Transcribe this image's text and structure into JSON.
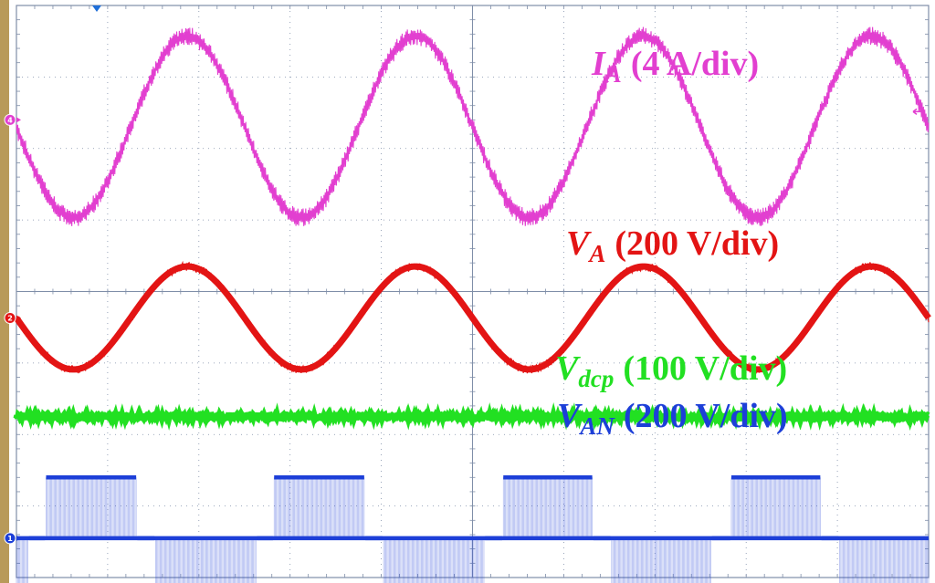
{
  "chart_data": {
    "type": "line",
    "title": "",
    "xlabel": "",
    "ylabel": "",
    "grid": true,
    "grid_divisions": {
      "x": 10,
      "y": 8
    },
    "axis_units": "divisions",
    "xlim": [
      0,
      10
    ],
    "ylim": [
      -4,
      4
    ],
    "series": [
      {
        "name_main": "I",
        "name_sub": "A",
        "scale": "(4 A/div)",
        "color": "#e23fd0",
        "channel_marker": "4",
        "waveform": "sine-with-ripple",
        "offset_div": 2.3,
        "amplitude_div": 1.27,
        "cycles_in_view": 4,
        "phase_deg": -180
      },
      {
        "name_main": "V",
        "name_sub": "A",
        "scale": "(200 V/div)",
        "color": "#e31414",
        "channel_marker": "2",
        "waveform": "sine",
        "offset_div": -0.37,
        "amplitude_div": 0.72,
        "cycles_in_view": 4,
        "phase_deg": -180
      },
      {
        "name_main": "V",
        "name_sub": "dcp",
        "scale": "(100 V/div)",
        "color": "#22e022",
        "waveform": "dc",
        "offset_div": -1.75
      },
      {
        "name_main": "V",
        "name_sub": "AN",
        "scale": "(200 V/div)",
        "color": "#1d3fd8",
        "channel_marker": "1",
        "waveform": "three-level-pwm",
        "levels_div": [
          -2.6,
          -3.45,
          -4.3
        ],
        "cycles_in_view": 4
      }
    ]
  },
  "colors": {
    "background": "#ffffff",
    "grid": "#7f8ea8",
    "frame_left": "#b89a5a",
    "trigger_marker": "#1f6fd8"
  }
}
